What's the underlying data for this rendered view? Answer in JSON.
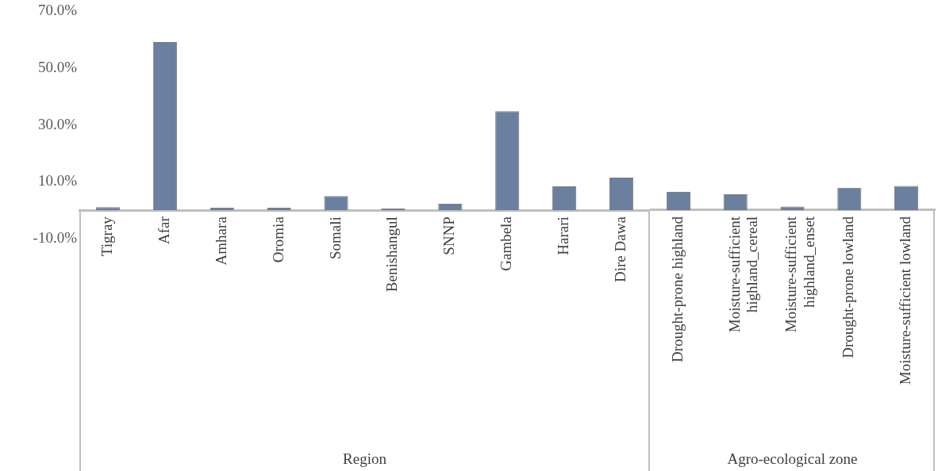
{
  "chart_data": [
    {
      "type": "bar",
      "xlabel": "Region",
      "categories": [
        "Tigray",
        "Afar",
        "Amhara",
        "Oromia",
        "Somali",
        "Benishangul",
        "SNNP",
        "Gambela",
        "Harari",
        "Dire Dawa"
      ],
      "values": [
        1.1,
        59.2,
        0.9,
        0.9,
        5.0,
        0.6,
        2.3,
        34.9,
        8.4,
        11.5
      ],
      "color": "#6b7f9e",
      "ylim": [
        -10,
        70
      ],
      "yticks": [
        {
          "value": -10,
          "label": "-10.0%"
        },
        {
          "value": 10,
          "label": "10.0%"
        },
        {
          "value": 30,
          "label": "30.0%"
        },
        {
          "value": 50,
          "label": "50.0%"
        },
        {
          "value": 70,
          "label": "70.0%"
        }
      ],
      "grid": false
    },
    {
      "type": "bar",
      "xlabel": "Agro-ecological zone",
      "categories": [
        "Drought-prone highland",
        "Moisture-sufficient highland_cereal",
        "Moisture-sufficient highland_enset",
        "Drought-prone lowland",
        "Moisture-sufficient lowland"
      ],
      "values": [
        6.3,
        5.5,
        1.2,
        7.8,
        8.4
      ],
      "color": "#6b7f9e",
      "ylim": [
        -10,
        70
      ],
      "grid": false,
      "tick_labels": "x"
    }
  ]
}
